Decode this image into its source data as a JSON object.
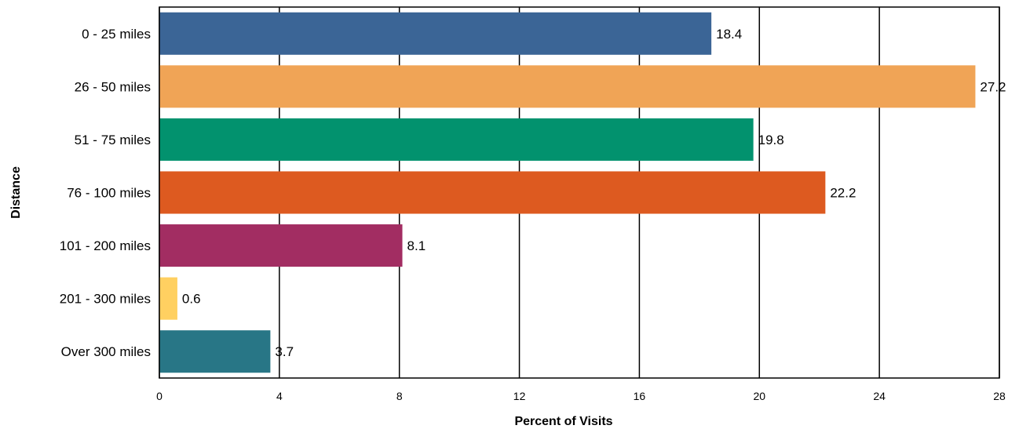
{
  "chart_data": {
    "type": "bar",
    "orientation": "horizontal",
    "categories": [
      "0 - 25 miles",
      "26 - 50 miles",
      "51 - 75 miles",
      "76 - 100 miles",
      "101 - 200 miles",
      "201 - 300 miles",
      "Over 300 miles"
    ],
    "values": [
      18.4,
      27.2,
      19.8,
      22.2,
      8.1,
      0.6,
      3.7
    ],
    "value_labels": [
      "18.4",
      "27.2",
      "19.8",
      "22.2",
      "8.1",
      "0.6",
      "3.7"
    ],
    "colors": [
      "#3b6596",
      "#f0a456",
      "#02926e",
      "#dd5a20",
      "#a22d62",
      "#ffd061",
      "#287686"
    ],
    "xlabel": "Percent of Visits",
    "ylabel": "Distance",
    "xlim": [
      0,
      28
    ],
    "xticks": [
      "0",
      "4",
      "8",
      "12",
      "16",
      "20",
      "24",
      "28"
    ],
    "grid": "vertical"
  }
}
